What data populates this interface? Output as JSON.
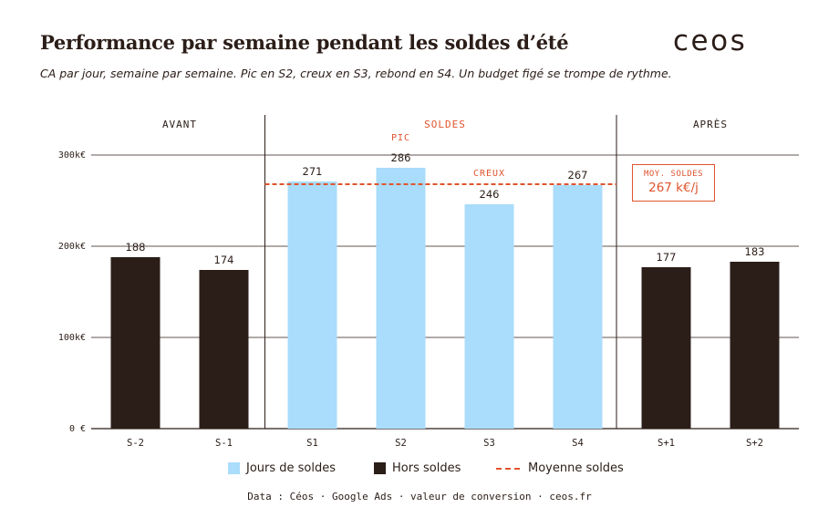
{
  "header": {
    "title": "Performance par semaine pendant les soldes d’été",
    "subtitle": "CA par jour, semaine par semaine. Pic en S2, creux en S3, rebond en S4. Un budget figé se trompe de rythme.",
    "logo_text": "ceos"
  },
  "chart_data": {
    "type": "bar",
    "categories": [
      "S-2",
      "S-1",
      "S1",
      "S2",
      "S3",
      "S4",
      "S+1",
      "S+2"
    ],
    "values": [
      188,
      174,
      271,
      286,
      246,
      267,
      177,
      183
    ],
    "groups": [
      "Hors soldes",
      "Hors soldes",
      "Jours de soldes",
      "Jours de soldes",
      "Jours de soldes",
      "Jours de soldes",
      "Hors soldes",
      "Hors soldes"
    ],
    "ylim": [
      0,
      300
    ],
    "yticks": [
      0,
      100,
      200,
      300
    ],
    "ytick_labels": [
      "0 €",
      "100k€",
      "200k€",
      "300k€"
    ],
    "grid": true,
    "sections": [
      {
        "label": "AVANT",
        "start": 0,
        "end": 1
      },
      {
        "label": "SOLDES",
        "start": 2,
        "end": 5
      },
      {
        "label": "APRÈS",
        "start": 6,
        "end": 7
      }
    ],
    "annotations": [
      {
        "label": "PIC",
        "category": "S2"
      },
      {
        "label": "CREUX",
        "category": "S3"
      }
    ],
    "average_line": {
      "value": 267,
      "label": "Moyenne soldes"
    },
    "average_box": {
      "title": "MOY. SOLDES",
      "value": "267 k€/j"
    },
    "colors": {
      "soldes": "#aadcfb",
      "hors_soldes": "#2b1d18",
      "average": "#e0542e",
      "text": "#2b1d18",
      "grid": "#2b1d18"
    }
  },
  "legend": [
    {
      "label": "Jours de soldes",
      "kind": "soldes"
    },
    {
      "label": "Hors soldes",
      "kind": "hors_soldes"
    },
    {
      "label": "Moyenne soldes",
      "kind": "average"
    }
  ],
  "footer": {
    "source": "Data : Céos · Google Ads · valeur de conversion · ceos.fr"
  }
}
